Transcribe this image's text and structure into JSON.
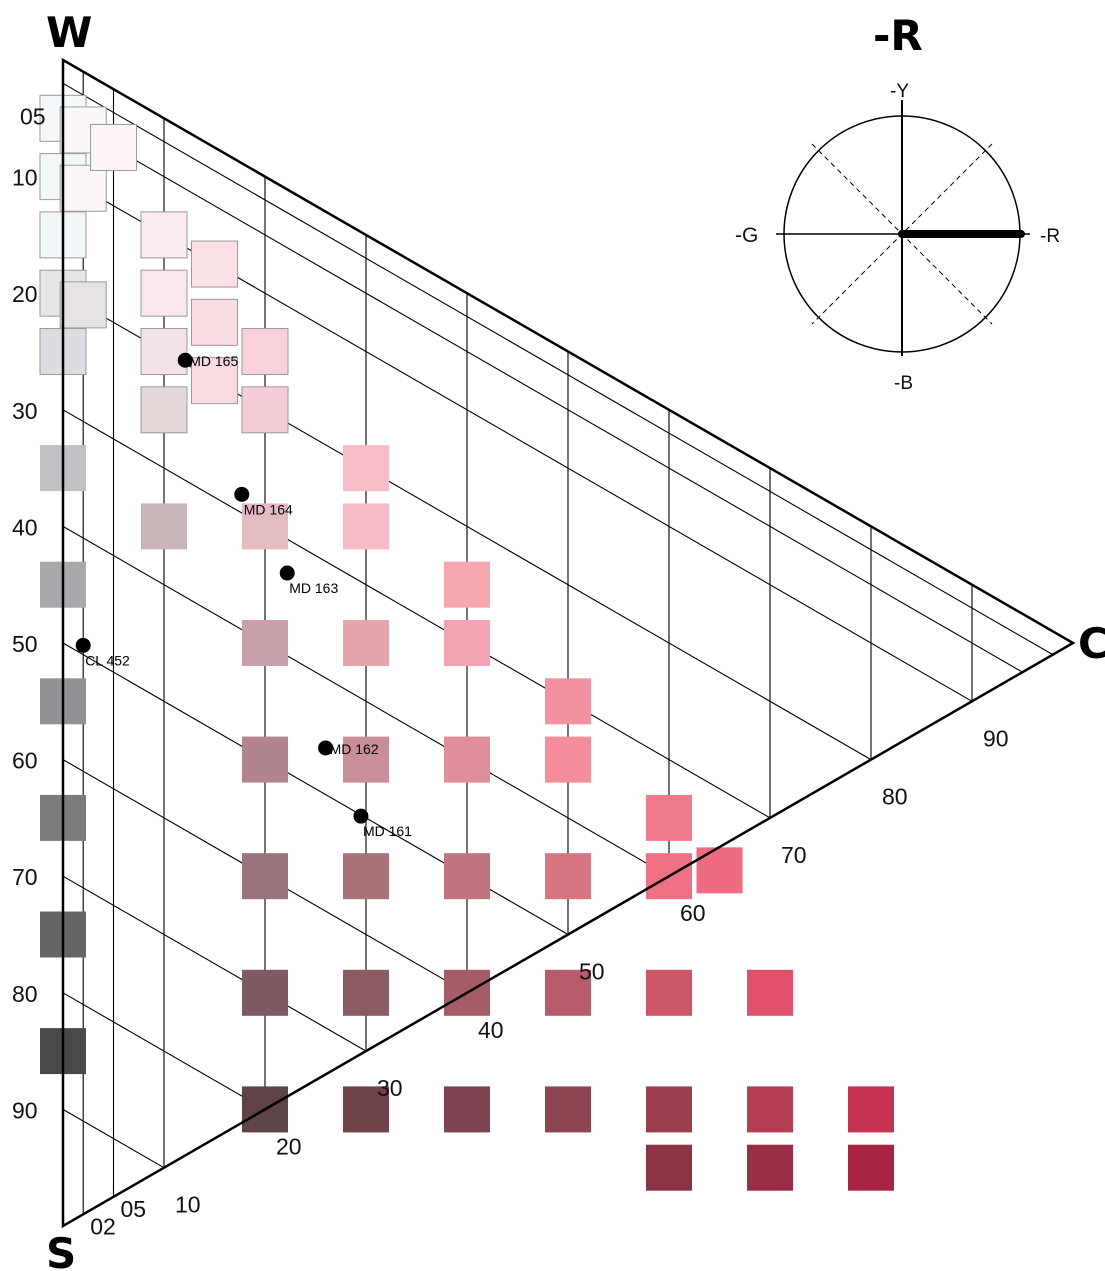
{
  "corners": {
    "white": "W",
    "black": "S",
    "chroma": "C"
  },
  "hue_title": "-R",
  "hue_circle": {
    "top": "-Y",
    "bottom": "-B",
    "left": "-G",
    "right": "-R",
    "selected_direction": "-R"
  },
  "blackness_ticks": [
    {
      "label": "05",
      "v": 5
    },
    {
      "label": "10",
      "v": 10
    },
    {
      "label": "20",
      "v": 20
    },
    {
      "label": "30",
      "v": 30
    },
    {
      "label": "40",
      "v": 40
    },
    {
      "label": "50",
      "v": 50
    },
    {
      "label": "60",
      "v": 60
    },
    {
      "label": "70",
      "v": 70
    },
    {
      "label": "80",
      "v": 80
    },
    {
      "label": "90",
      "v": 90
    }
  ],
  "chroma_ticks": [
    {
      "label": "02",
      "v": 2
    },
    {
      "label": "05",
      "v": 5
    },
    {
      "label": "10",
      "v": 10
    },
    {
      "label": "20",
      "v": 20
    },
    {
      "label": "30",
      "v": 30
    },
    {
      "label": "40",
      "v": 40
    },
    {
      "label": "50",
      "v": 50
    },
    {
      "label": "60",
      "v": 60
    },
    {
      "label": "70",
      "v": 70
    },
    {
      "label": "80",
      "v": 80
    },
    {
      "label": "90",
      "v": 90
    }
  ],
  "grid_lines": [
    2,
    5,
    10,
    20,
    30,
    40,
    50,
    60,
    70,
    80,
    90
  ],
  "samples": [
    {
      "s": 5,
      "c": 0,
      "color": "#f4f8fa"
    },
    {
      "s": 10,
      "c": 0,
      "color": "#f2f7fa"
    },
    {
      "s": 15,
      "c": 0,
      "color": "#f1f6f9"
    },
    {
      "s": 20,
      "c": 0,
      "color": "#e4e6ea"
    },
    {
      "s": 25,
      "c": 0,
      "color": "#dcdde2"
    },
    {
      "s": 35,
      "c": 0,
      "color": "#bfc1c5"
    },
    {
      "s": 45,
      "c": 0,
      "color": "#a9a9ad"
    },
    {
      "s": 55,
      "c": 0,
      "color": "#929196"
    },
    {
      "s": 65,
      "c": 0,
      "color": "#7b7b7e"
    },
    {
      "s": 75,
      "c": 0,
      "color": "#656566"
    },
    {
      "s": 85,
      "c": 0,
      "color": "#4a4849"
    },
    {
      "s": 5,
      "c": 2,
      "color": "#fbf7f8"
    },
    {
      "s": 10,
      "c": 2,
      "color": "#fcf6f8"
    },
    {
      "s": 20,
      "c": 2,
      "color": "#e6e2e5"
    },
    {
      "s": 5,
      "c": 5,
      "color": "#fdf4f6"
    },
    {
      "s": 10,
      "c": 10,
      "color": "#fcecf1"
    },
    {
      "s": 15,
      "c": 10,
      "color": "#fae8ed"
    },
    {
      "s": 20,
      "c": 10,
      "color": "#f3e2e6"
    },
    {
      "s": 25,
      "c": 10,
      "color": "#e6d7d9"
    },
    {
      "s": 35,
      "c": 10,
      "color": "#c9b4b7"
    },
    {
      "s": 10,
      "c": 15,
      "color": "#fbe0e6"
    },
    {
      "s": 15,
      "c": 15,
      "color": "#fadde3"
    },
    {
      "s": 20,
      "c": 15,
      "color": "#f9dae1"
    },
    {
      "s": 15,
      "c": 20,
      "color": "#f8d1da"
    },
    {
      "s": 20,
      "c": 20,
      "color": "#f6cdd6"
    },
    {
      "s": 30,
      "c": 20,
      "color": "#e6bcc3"
    },
    {
      "s": 40,
      "c": 20,
      "color": "#caa0a8"
    },
    {
      "s": 50,
      "c": 20,
      "color": "#b2848d"
    },
    {
      "s": 60,
      "c": 20,
      "color": "#9a737b"
    },
    {
      "s": 70,
      "c": 20,
      "color": "#7e5b61"
    },
    {
      "s": 80,
      "c": 20,
      "color": "#5e4347"
    },
    {
      "s": 20,
      "c": 30,
      "color": "#f8bdc7"
    },
    {
      "s": 25,
      "c": 30,
      "color": "#f7bcc8"
    },
    {
      "s": 35,
      "c": 30,
      "color": "#e5a5ad"
    },
    {
      "s": 45,
      "c": 30,
      "color": "#c98e98"
    },
    {
      "s": 55,
      "c": 30,
      "color": "#a97178"
    },
    {
      "s": 65,
      "c": 30,
      "color": "#8b5b62"
    },
    {
      "s": 75,
      "c": 30,
      "color": "#6e434a"
    },
    {
      "s": 25,
      "c": 40,
      "color": "#f6a7ae"
    },
    {
      "s": 30,
      "c": 40,
      "color": "#f4a3b2"
    },
    {
      "s": 40,
      "c": 40,
      "color": "#e18e9b"
    },
    {
      "s": 50,
      "c": 40,
      "color": "#c1737f"
    },
    {
      "s": 60,
      "c": 40,
      "color": "#a55c67"
    },
    {
      "s": 70,
      "c": 40,
      "color": "#7d4350"
    },
    {
      "s": 30,
      "c": 50,
      "color": "#f391a0"
    },
    {
      "s": 35,
      "c": 50,
      "color": "#f48e9c"
    },
    {
      "s": 45,
      "c": 50,
      "color": "#d87582"
    },
    {
      "s": 55,
      "c": 50,
      "color": "#b85b6d"
    },
    {
      "s": 65,
      "c": 50,
      "color": "#8f4551"
    },
    {
      "s": 35,
      "c": 60,
      "color": "#f17b8d"
    },
    {
      "s": 40,
      "c": 60,
      "color": "#ef7084"
    },
    {
      "s": 50,
      "c": 60,
      "color": "#ce5669"
    },
    {
      "s": 60,
      "c": 60,
      "color": "#9d3e50"
    },
    {
      "s": 65,
      "c": 60,
      "color": "#8c3443"
    },
    {
      "s": 37,
      "c": 65,
      "color": "#f06b80"
    },
    {
      "s": 45,
      "c": 70,
      "color": "#e2516c"
    },
    {
      "s": 55,
      "c": 70,
      "color": "#b83c52"
    },
    {
      "s": 60,
      "c": 70,
      "color": "#982d43"
    },
    {
      "s": 50,
      "c": 80,
      "color": "#c73251"
    },
    {
      "s": 55,
      "c": 80,
      "color": "#a72543"
    }
  ],
  "markers": [
    {
      "label": "MD 165",
      "s": 19.7,
      "c": 12.1
    },
    {
      "label": "MD 164",
      "s": 28.4,
      "c": 17.7
    },
    {
      "label": "MD 163",
      "s": 32.9,
      "c": 22.2
    },
    {
      "label": "MD 162",
      "s": 46.0,
      "c": 26.0
    },
    {
      "label": "MD 161",
      "s": 50.1,
      "c": 29.5
    },
    {
      "label": "CL 452",
      "s": 49.2,
      "c": 2.0
    }
  ]
}
